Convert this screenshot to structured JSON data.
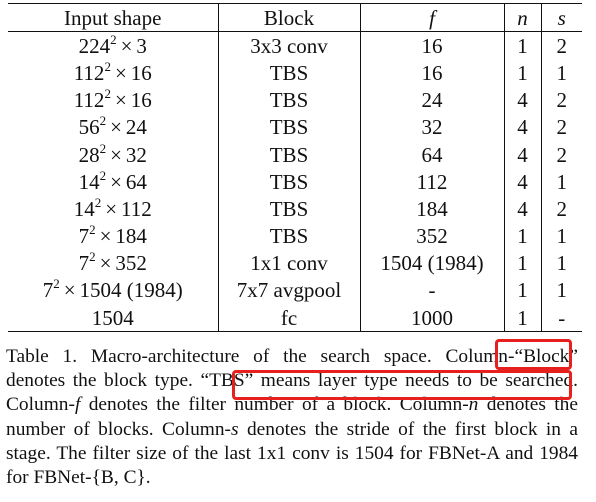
{
  "table": {
    "headers": {
      "input_shape": "Input shape",
      "block": "Block",
      "f": "f",
      "n": "n",
      "s": "s"
    },
    "rows": [
      {
        "base": "224",
        "exp": "2",
        "times": "×",
        "channels": "3",
        "block": "3x3 conv",
        "f": "16",
        "n": "1",
        "s": "2"
      },
      {
        "base": "112",
        "exp": "2",
        "times": "×",
        "channels": "16",
        "block": "TBS",
        "f": "16",
        "n": "1",
        "s": "1"
      },
      {
        "base": "112",
        "exp": "2",
        "times": "×",
        "channels": "16",
        "block": "TBS",
        "f": "24",
        "n": "4",
        "s": "2"
      },
      {
        "base": "56",
        "exp": "2",
        "times": "×",
        "channels": "24",
        "block": "TBS",
        "f": "32",
        "n": "4",
        "s": "2"
      },
      {
        "base": "28",
        "exp": "2",
        "times": "×",
        "channels": "32",
        "block": "TBS",
        "f": "64",
        "n": "4",
        "s": "2"
      },
      {
        "base": "14",
        "exp": "2",
        "times": "×",
        "channels": "64",
        "block": "TBS",
        "f": "112",
        "n": "4",
        "s": "1"
      },
      {
        "base": "14",
        "exp": "2",
        "times": "×",
        "channels": "112",
        "block": "TBS",
        "f": "184",
        "n": "4",
        "s": "2"
      },
      {
        "base": "7",
        "exp": "2",
        "times": "×",
        "channels": "184",
        "block": "TBS",
        "f": "352",
        "n": "1",
        "s": "1"
      },
      {
        "base": "7",
        "exp": "2",
        "times": "×",
        "channels": "352",
        "block": "1x1 conv",
        "f": "1504 (1984)",
        "n": "1",
        "s": "1"
      },
      {
        "base": "7",
        "exp": "2",
        "times": "×",
        "channels": "1504 (1984)",
        "block": "7x7 avgpool",
        "f": "-",
        "n": "1",
        "s": "1"
      },
      {
        "base": "1504",
        "exp": "",
        "times": "",
        "channels": "",
        "block": "fc",
        "f": "1000",
        "n": "1",
        "s": "-"
      }
    ]
  },
  "caption": {
    "part1": "Table 1. Macro-architecture of the search space. Column-“",
    "block_word": "Block",
    "part2": "” denotes the block type. ",
    "tbs_sentence": "“TBS” means layer type needs to be",
    "part3": " searched. Column-",
    "f_var": "f",
    "part4": " denotes the filter number of a block. Column-",
    "n_var": "n",
    "part5": " denotes the number of blocks. Column-",
    "s_var": "s",
    "part6": " denotes the stride of the first block in a stage. The filter size of the last 1x1 conv is 1504 for FBNet-A and 1984 for FBNet-{B, C}."
  },
  "highlight": {
    "color": "#e8201d"
  }
}
